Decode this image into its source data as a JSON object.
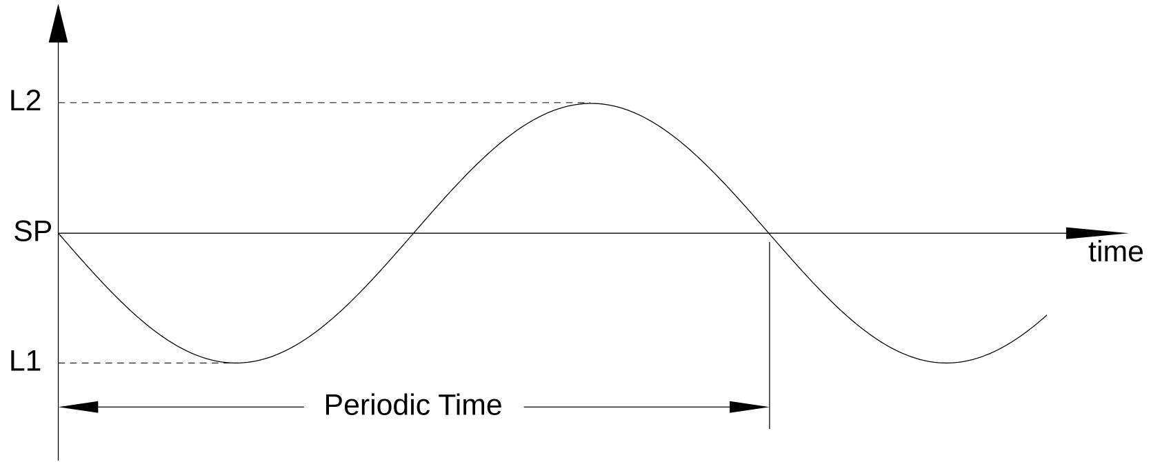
{
  "labels": {
    "upper": "L2",
    "setpoint": "SP",
    "lower": "L1",
    "x_axis": "time",
    "period": "Periodic Time"
  }
}
